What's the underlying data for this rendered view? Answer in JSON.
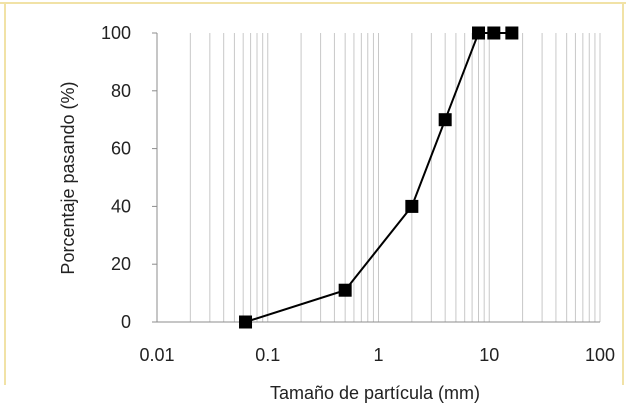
{
  "colors": {
    "frame": "#f1e2a6",
    "grid": "#c8c8c8",
    "axis": "#8c8c8c",
    "series": "#000000"
  },
  "chart_data": {
    "type": "scatter",
    "title": "",
    "xlabel": "Tamaño de partícula (mm)",
    "ylabel": "Porcentaje pasando (%)",
    "x_scale": "log",
    "xlim": [
      0.01,
      100
    ],
    "ylim": [
      0,
      100
    ],
    "x_ticks": [
      "0.01",
      "0.1",
      "1",
      "10",
      "100"
    ],
    "y_ticks": [
      "0",
      "20",
      "40",
      "60",
      "80",
      "100"
    ],
    "grid": "vertical minor and major (log)",
    "legend": "none",
    "series": [
      {
        "marker": "square",
        "line": "solid",
        "x": [
          0.063,
          0.5,
          2,
          4,
          8,
          11,
          16
        ],
        "y": [
          0,
          11,
          40,
          70,
          100,
          100,
          100
        ]
      }
    ]
  }
}
